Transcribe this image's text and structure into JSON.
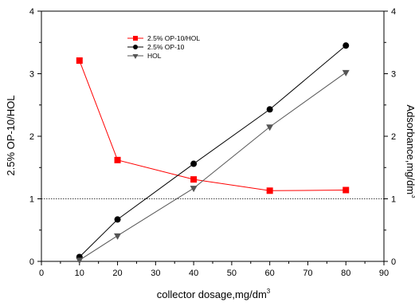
{
  "chart_data": {
    "type": "line",
    "x": [
      10,
      20,
      40,
      60,
      80
    ],
    "xlabel": "collector dosage,mg/dm",
    "xlabel_sup": "3",
    "ylabel_left": "2.5% OP-10/HOL",
    "ylabel_right": "Adsorbance,mg/dm",
    "ylabel_right_sup": "3",
    "xlim": [
      0,
      90
    ],
    "ylim": [
      0,
      4
    ],
    "ylim_right": [
      0,
      4
    ],
    "xticks": [
      0,
      10,
      20,
      30,
      40,
      50,
      60,
      70,
      80,
      90
    ],
    "yticks": [
      0,
      1,
      2,
      3,
      4
    ],
    "reference_line_y": 1,
    "grid": false,
    "legend_position": "top-left",
    "series": [
      {
        "name": "2.5% OP-10/HOL",
        "axis": "left",
        "marker": "square",
        "color": "#ff0000",
        "values": [
          3.21,
          1.62,
          1.31,
          1.13,
          1.14
        ]
      },
      {
        "name": "2.5% OP-10",
        "axis": "right",
        "marker": "circle",
        "color": "#000000",
        "values": [
          0.07,
          0.67,
          1.56,
          2.43,
          3.45
        ]
      },
      {
        "name": "HOL",
        "axis": "right",
        "marker": "triangle-down",
        "color": "#555555",
        "values": [
          0.02,
          0.41,
          1.17,
          2.15,
          3.02
        ]
      }
    ]
  }
}
